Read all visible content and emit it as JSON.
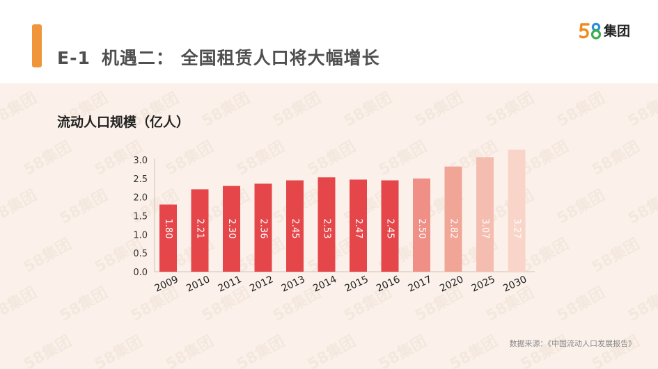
{
  "header": {
    "code": "E-1",
    "title": "机遇二：  全国租赁人口将大幅增长"
  },
  "logo": {
    "digits": "58",
    "text": "集团"
  },
  "chart_data": {
    "type": "bar",
    "title": "流动人口规模（亿人）",
    "xlabel": "",
    "ylabel": "",
    "categories": [
      "2009",
      "2010",
      "2011",
      "2012",
      "2013",
      "2014",
      "2015",
      "2016",
      "2017",
      "2020",
      "2025",
      "2030"
    ],
    "values": [
      1.8,
      2.21,
      2.3,
      2.36,
      2.45,
      2.53,
      2.47,
      2.45,
      2.5,
      2.82,
      3.07,
      3.27
    ],
    "value_labels": [
      "1.80",
      "2.21",
      "2.30",
      "2.36",
      "2.45",
      "2.53",
      "2.47",
      "2.45",
      "2.50",
      "2.82",
      "3.07",
      "3.27"
    ],
    "ylim": [
      0,
      3.0
    ],
    "yticks": [
      "0.0",
      "0.5",
      "1.0",
      "1.5",
      "2.0",
      "2.5",
      "3.0"
    ],
    "bar_colors": [
      "#e5464a",
      "#e5464a",
      "#e5464a",
      "#e5464a",
      "#e5464a",
      "#e5464a",
      "#e5464a",
      "#e5464a",
      "#ef8f86",
      "#f0a596",
      "#f4bdb0",
      "#f8d4c9"
    ],
    "grid": false
  },
  "footer": {
    "source": "数据来源：《中国流动人口发展报告》"
  },
  "colors": {
    "accent": "#f0953a",
    "panel_bg": "#fbf1ea",
    "bar_main": "#e5464a"
  }
}
